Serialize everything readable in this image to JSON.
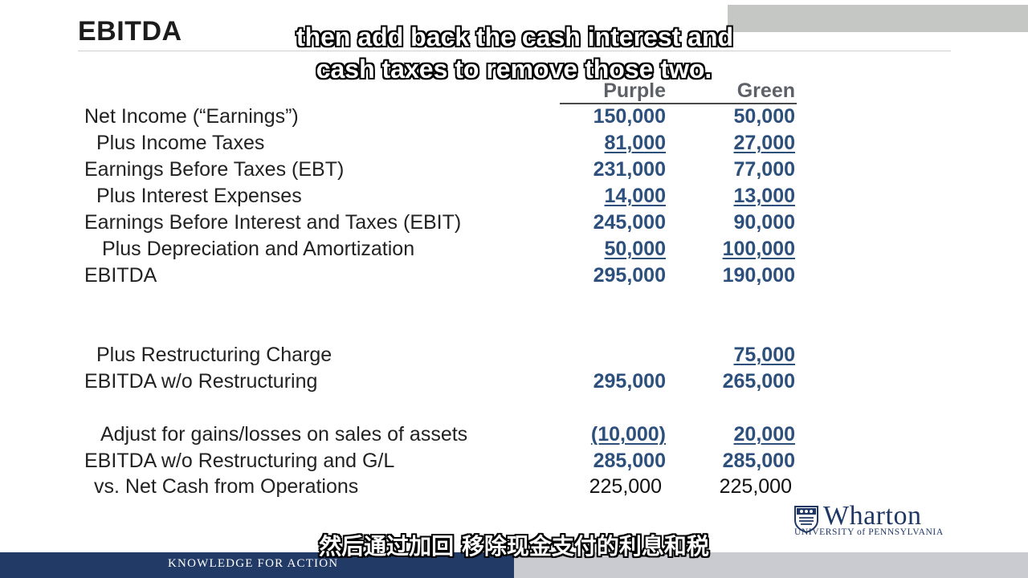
{
  "slide": {
    "title": "EBITDA",
    "column_headers": {
      "purple": "Purple",
      "green": "Green"
    }
  },
  "subtitles": {
    "en_line1": "then add back the cash interest and",
    "en_line2": "cash taxes to remove those two.",
    "zh": "然后通过加回 移除现金支付的利息和税"
  },
  "rows": [
    {
      "label": "Net Income (“Earnings”)",
      "purple": "150,000",
      "green": "50,000"
    },
    {
      "label": "Plus Income Taxes",
      "purple": "81,000",
      "green": "27,000"
    },
    {
      "label": "Earnings Before Taxes (EBT)",
      "purple": "231,000",
      "green": "77,000"
    },
    {
      "label": "Plus Interest Expenses",
      "purple": "14,000",
      "green": "13,000"
    },
    {
      "label": "Earnings Before Interest and Taxes (EBIT)",
      "purple": "245,000",
      "green": "90,000"
    },
    {
      "label": "Plus Depreciation and Amortization",
      "purple": "50,000",
      "green": "100,000"
    },
    {
      "label": "EBITDA",
      "purple": "295,000",
      "green": "190,000"
    },
    {
      "label": "Plus Restructuring Charge",
      "purple": "",
      "green": "75,000"
    },
    {
      "label": "EBITDA w/o Restructuring",
      "purple": "295,000",
      "green": "265,000"
    },
    {
      "label": "Adjust for gains/losses on sales of assets",
      "purple": "(10,000)",
      "green": "20,000"
    },
    {
      "label": "EBITDA w/o Restructuring and G/L",
      "purple": "285,000",
      "green": "285,000"
    },
    {
      "label": "vs.  Net Cash from Operations",
      "purple": "225,000",
      "green": "225,000"
    }
  ],
  "logo": {
    "name": "Wharton",
    "subtitle": "UNIVERSITY of PENNSYLVANIA"
  },
  "footer": {
    "tagline": "KNOWLEDGE FOR ACTION"
  },
  "colors": {
    "value_blue": "#2d4f7c",
    "footer_navy": "#223a66",
    "footer_gray": "#c9cbd0",
    "wharton_navy": "#1f3765"
  }
}
